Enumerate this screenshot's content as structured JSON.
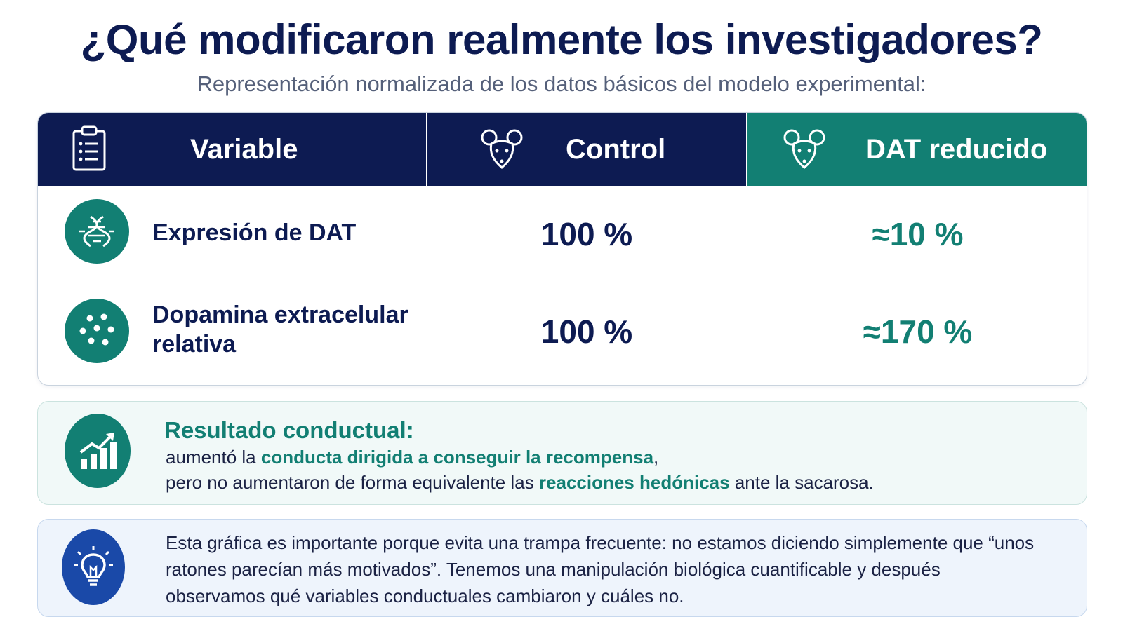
{
  "title": "¿Qué modificaron realmente los investigadores?",
  "subtitle": "Representación normalizada de los datos básicos del modelo experimental:",
  "table": {
    "headers": {
      "variable": "Variable",
      "control": "Control",
      "dat_reducido": "DAT reducido"
    },
    "rows": [
      {
        "label": "Expresión de DAT",
        "control": "100 %",
        "dat_reducido": "≈10 %",
        "icon": "dna-icon"
      },
      {
        "label_line1": "Dopamina extracelular",
        "label_line2": "relativa",
        "control": "100 %",
        "dat_reducido": "≈170 %",
        "icon": "dots-icon"
      }
    ]
  },
  "result": {
    "title": "Resultado conductual:",
    "line1_pre": "aumentó la ",
    "line1_hl": "conducta dirigida a conseguir la recompensa",
    "line1_post": ",",
    "line2_pre": "pero no aumentaron de forma equivalente las ",
    "line2_hl": "reacciones hedónicas",
    "line2_post": " ante la sacarosa.",
    "icon": "growth-chart-icon"
  },
  "note": {
    "text": "Esta gráfica es importante porque evita una trampa frecuente: no estamos diciendo simplemente que “unos ratones parecían más motivados”. Tenemos una manipulación biológica cuantificable y después observamos qué variables conductuales cambiaron y cuáles no.",
    "icon": "lightbulb-icon"
  },
  "colors": {
    "navy": "#0d1b52",
    "teal": "#127f73",
    "blue": "#1a49a8"
  }
}
